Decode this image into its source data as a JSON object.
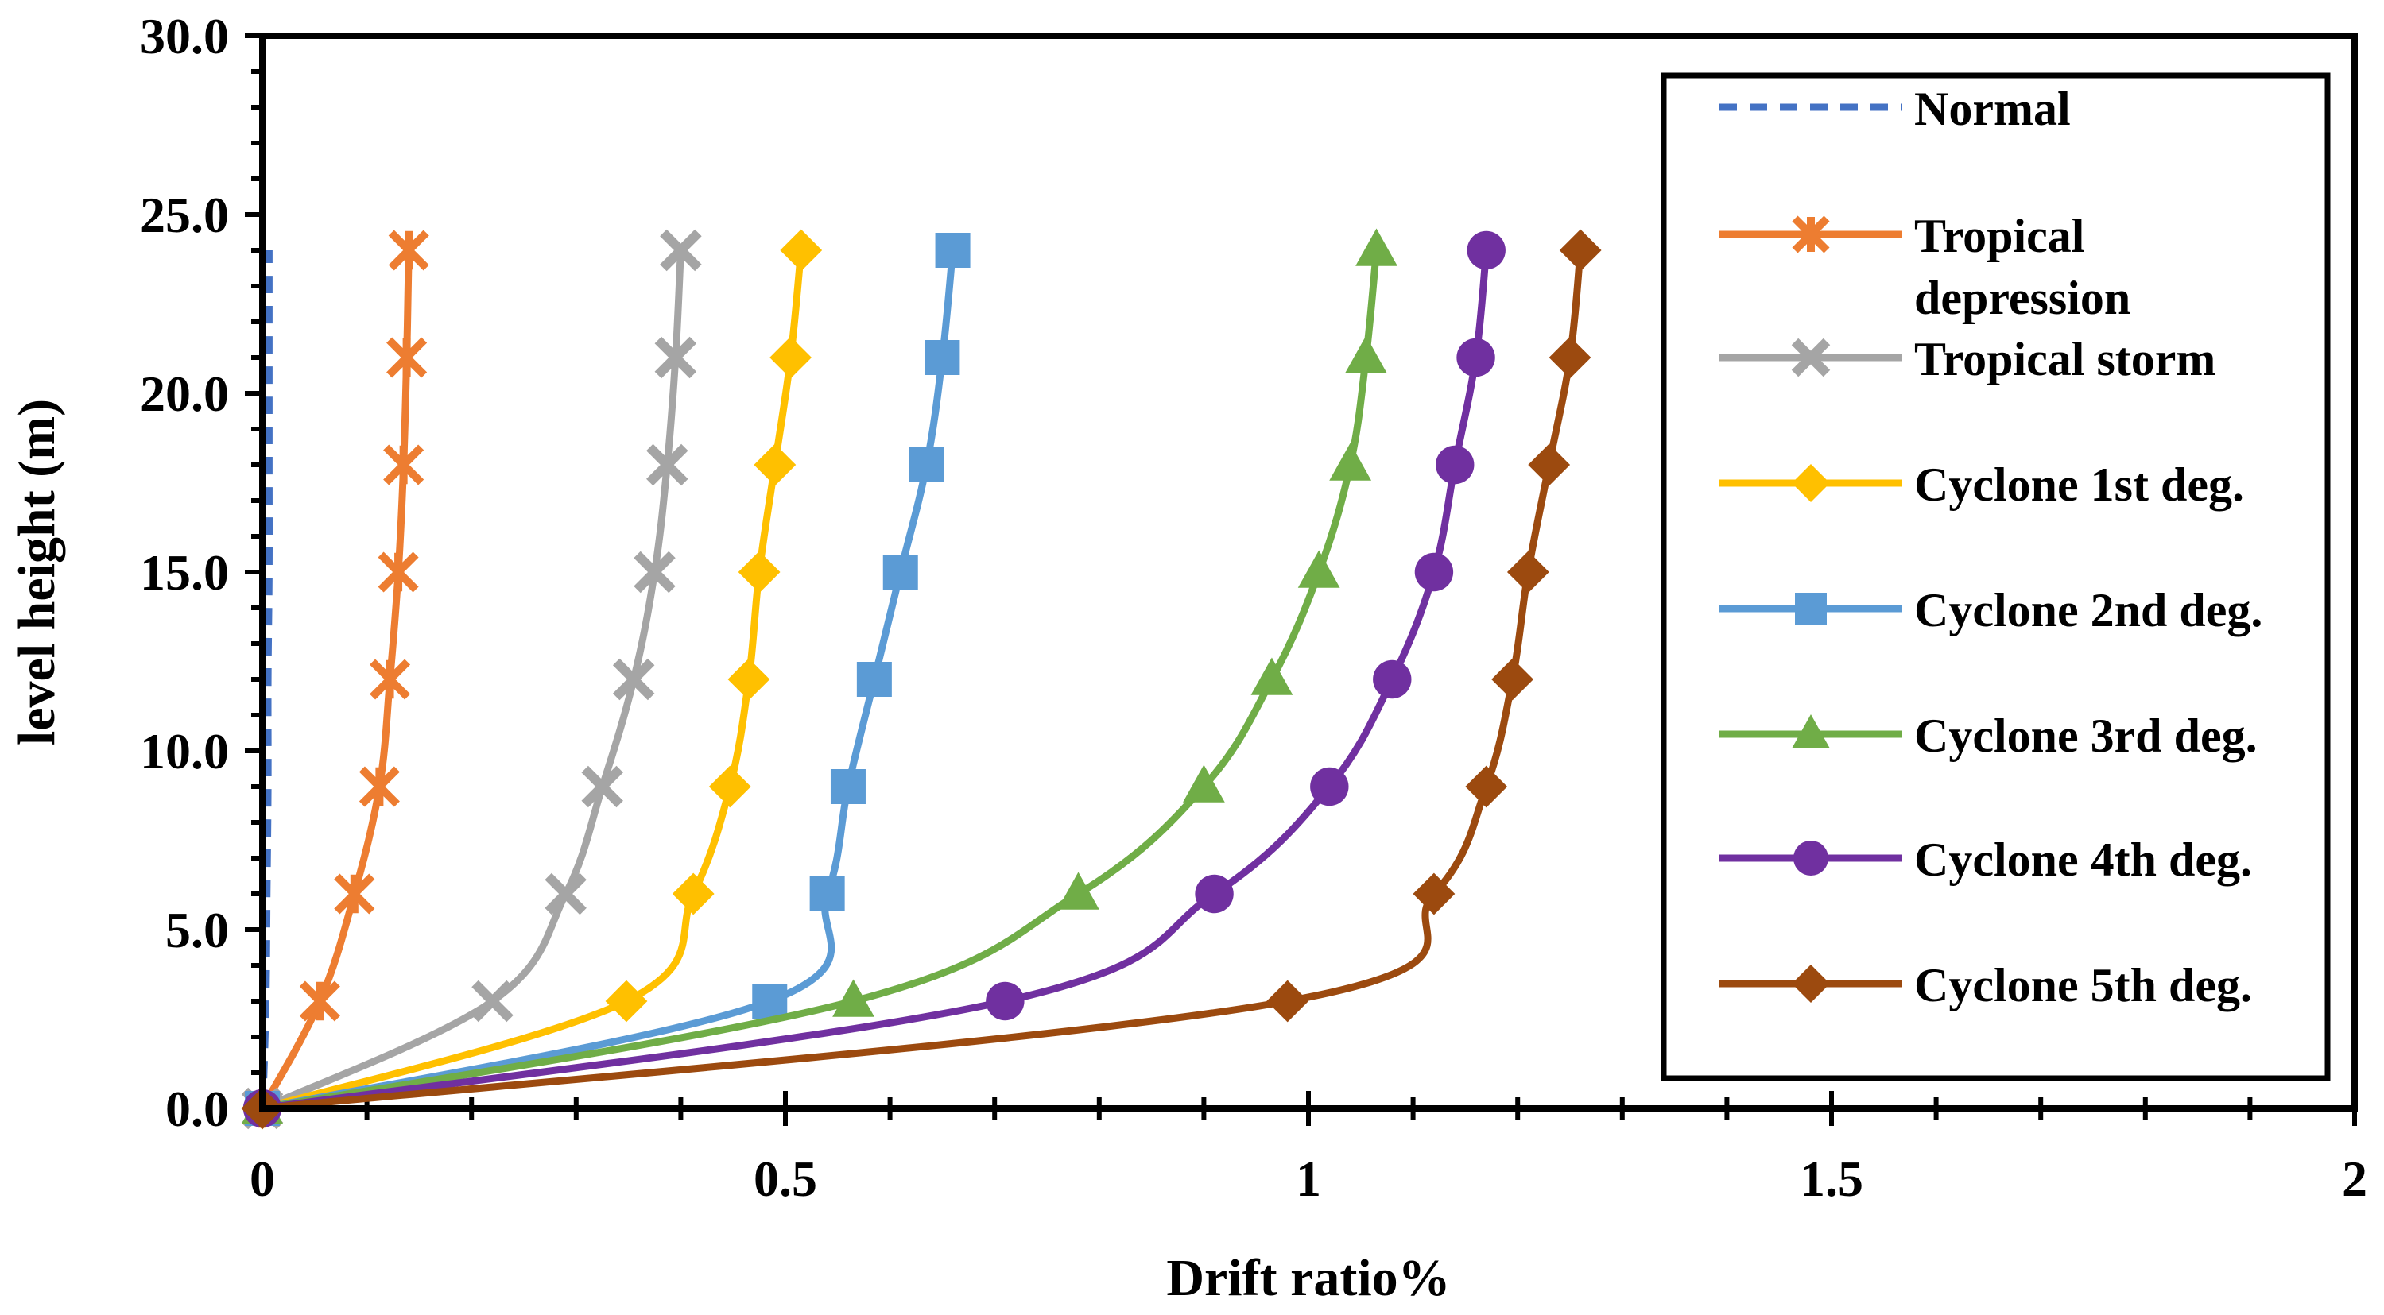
{
  "chart_data": {
    "type": "line",
    "title": "",
    "xlabel": "Drift ratio%",
    "ylabel": "level height (m)",
    "xlim": [
      0,
      2
    ],
    "ylim": [
      0,
      30
    ],
    "x_ticks": [
      "0",
      "0.5",
      "1",
      "1.5",
      "2"
    ],
    "y_ticks": [
      "0.0",
      "5.0",
      "10.0",
      "15.0",
      "20.0",
      "25.0",
      "30.0"
    ],
    "legend_position": "top-right",
    "heights": [
      0,
      3,
      6,
      9,
      12,
      15,
      18,
      21,
      24
    ],
    "series": [
      {
        "name": "Normal",
        "color": "#4472C4",
        "style": "dashed",
        "marker": "none",
        "x": [
          0.0,
          0.003,
          0.004,
          0.005,
          0.005,
          0.006,
          0.006,
          0.006,
          0.006
        ]
      },
      {
        "name": "Tropical depression",
        "color": "#ED7D31",
        "style": "solid",
        "marker": "star",
        "x": [
          0.0,
          0.055,
          0.088,
          0.112,
          0.122,
          0.13,
          0.135,
          0.138,
          0.14
        ]
      },
      {
        "name": "Tropical storm",
        "color": "#A5A5A5",
        "style": "solid",
        "marker": "x",
        "x": [
          0.0,
          0.22,
          0.29,
          0.325,
          0.355,
          0.375,
          0.387,
          0.395,
          0.4
        ]
      },
      {
        "name": "Cyclone 1st deg.",
        "color": "#FFC000",
        "style": "solid",
        "marker": "diamond",
        "x": [
          0.0,
          0.348,
          0.412,
          0.447,
          0.465,
          0.475,
          0.49,
          0.505,
          0.515
        ]
      },
      {
        "name": "Cyclone 2nd deg.",
        "color": "#5B9BD5",
        "style": "solid",
        "marker": "square",
        "x": [
          0.0,
          0.485,
          0.54,
          0.56,
          0.585,
          0.61,
          0.635,
          0.65,
          0.66
        ]
      },
      {
        "name": "Cyclone 3rd deg.",
        "color": "#70AD47",
        "style": "solid",
        "marker": "triangle",
        "x": [
          0.0,
          0.565,
          0.78,
          0.9,
          0.965,
          1.01,
          1.04,
          1.055,
          1.065
        ]
      },
      {
        "name": "Cyclone 4th deg.",
        "color": "#7030A0",
        "style": "solid",
        "marker": "circle",
        "x": [
          0.0,
          0.71,
          0.91,
          1.02,
          1.08,
          1.12,
          1.14,
          1.16,
          1.17
        ]
      },
      {
        "name": "Cyclone 5th deg.",
        "color": "#9C4A0F",
        "style": "solid",
        "marker": "diamond",
        "x": [
          0.0,
          0.98,
          1.12,
          1.17,
          1.195,
          1.21,
          1.23,
          1.25,
          1.26
        ]
      }
    ]
  }
}
